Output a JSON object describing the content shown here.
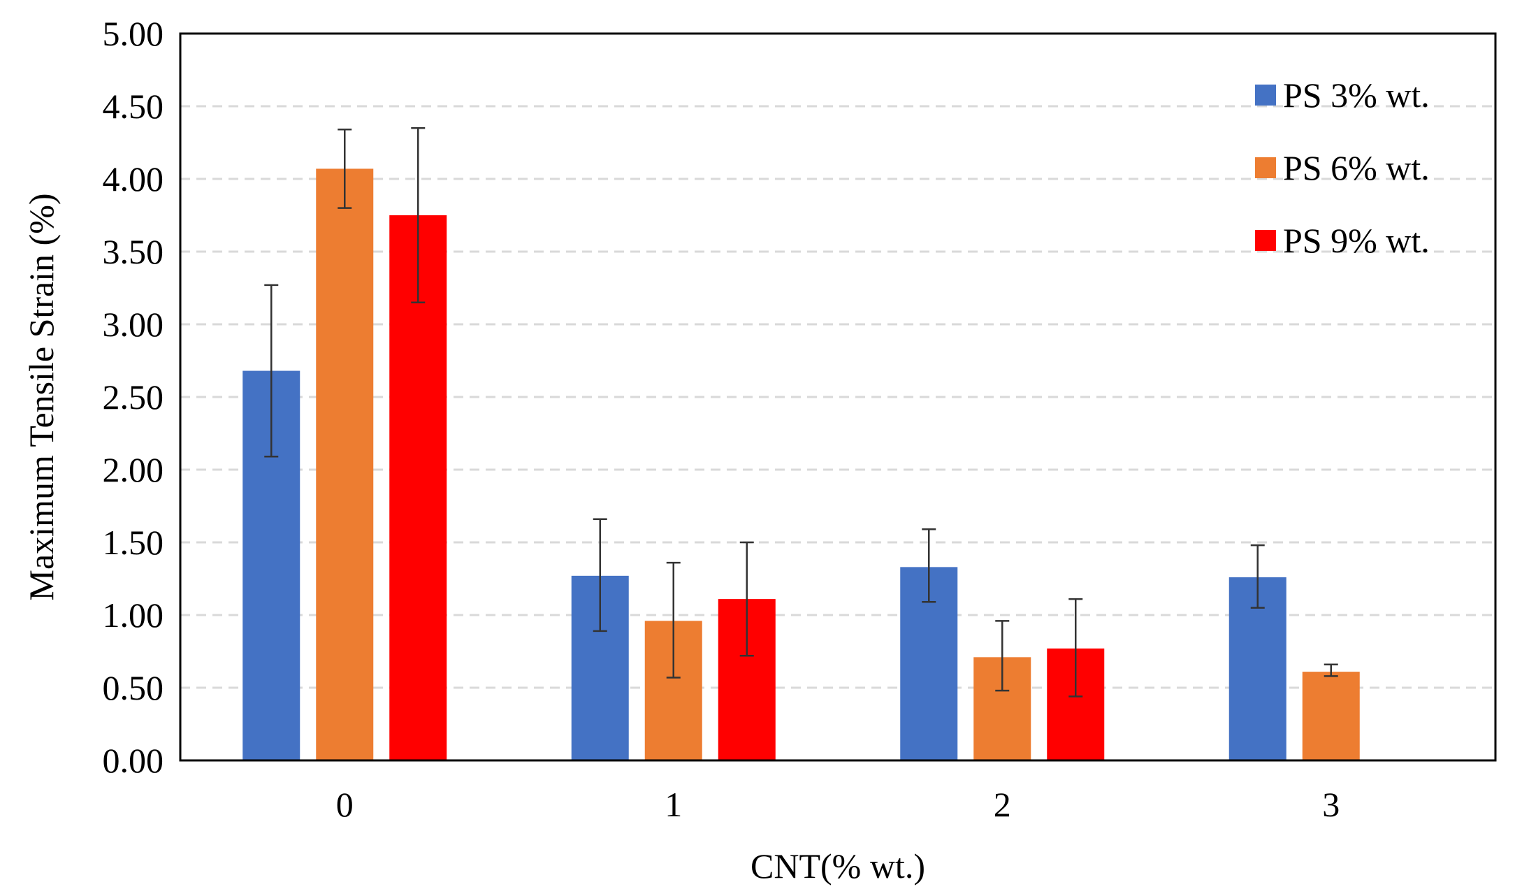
{
  "chart_data": {
    "type": "bar",
    "title": "",
    "xlabel": "CNT(% wt.)",
    "ylabel": "Maximum Tensile Strain (%)",
    "ylim": [
      0,
      5
    ],
    "y_ticks": [
      "0.00",
      "0.50",
      "1.00",
      "1.50",
      "2.00",
      "2.50",
      "3.00",
      "3.50",
      "4.00",
      "4.50",
      "5.00"
    ],
    "grid": "horizontal dashed",
    "legend_position": "top-right",
    "categories": [
      "0",
      "1",
      "2",
      "3"
    ],
    "series": [
      {
        "name": "PS 3% wt.",
        "color": "#4472c4",
        "values": [
          2.68,
          1.27,
          1.33,
          1.26
        ],
        "error_low": [
          2.09,
          0.89,
          1.09,
          1.05
        ],
        "error_high": [
          3.27,
          1.66,
          1.59,
          1.48
        ]
      },
      {
        "name": "PS 6% wt.",
        "color": "#ed7d31",
        "values": [
          4.07,
          0.96,
          0.71,
          0.61
        ],
        "error_low": [
          3.8,
          0.57,
          0.48,
          0.58
        ],
        "error_high": [
          4.34,
          1.36,
          0.96,
          0.66
        ]
      },
      {
        "name": "PS 9% wt.",
        "color": "#ff0000",
        "values": [
          3.75,
          1.11,
          0.77,
          null
        ],
        "error_low": [
          3.15,
          0.72,
          0.44,
          null
        ],
        "error_high": [
          4.35,
          1.5,
          1.11,
          null
        ]
      }
    ]
  }
}
